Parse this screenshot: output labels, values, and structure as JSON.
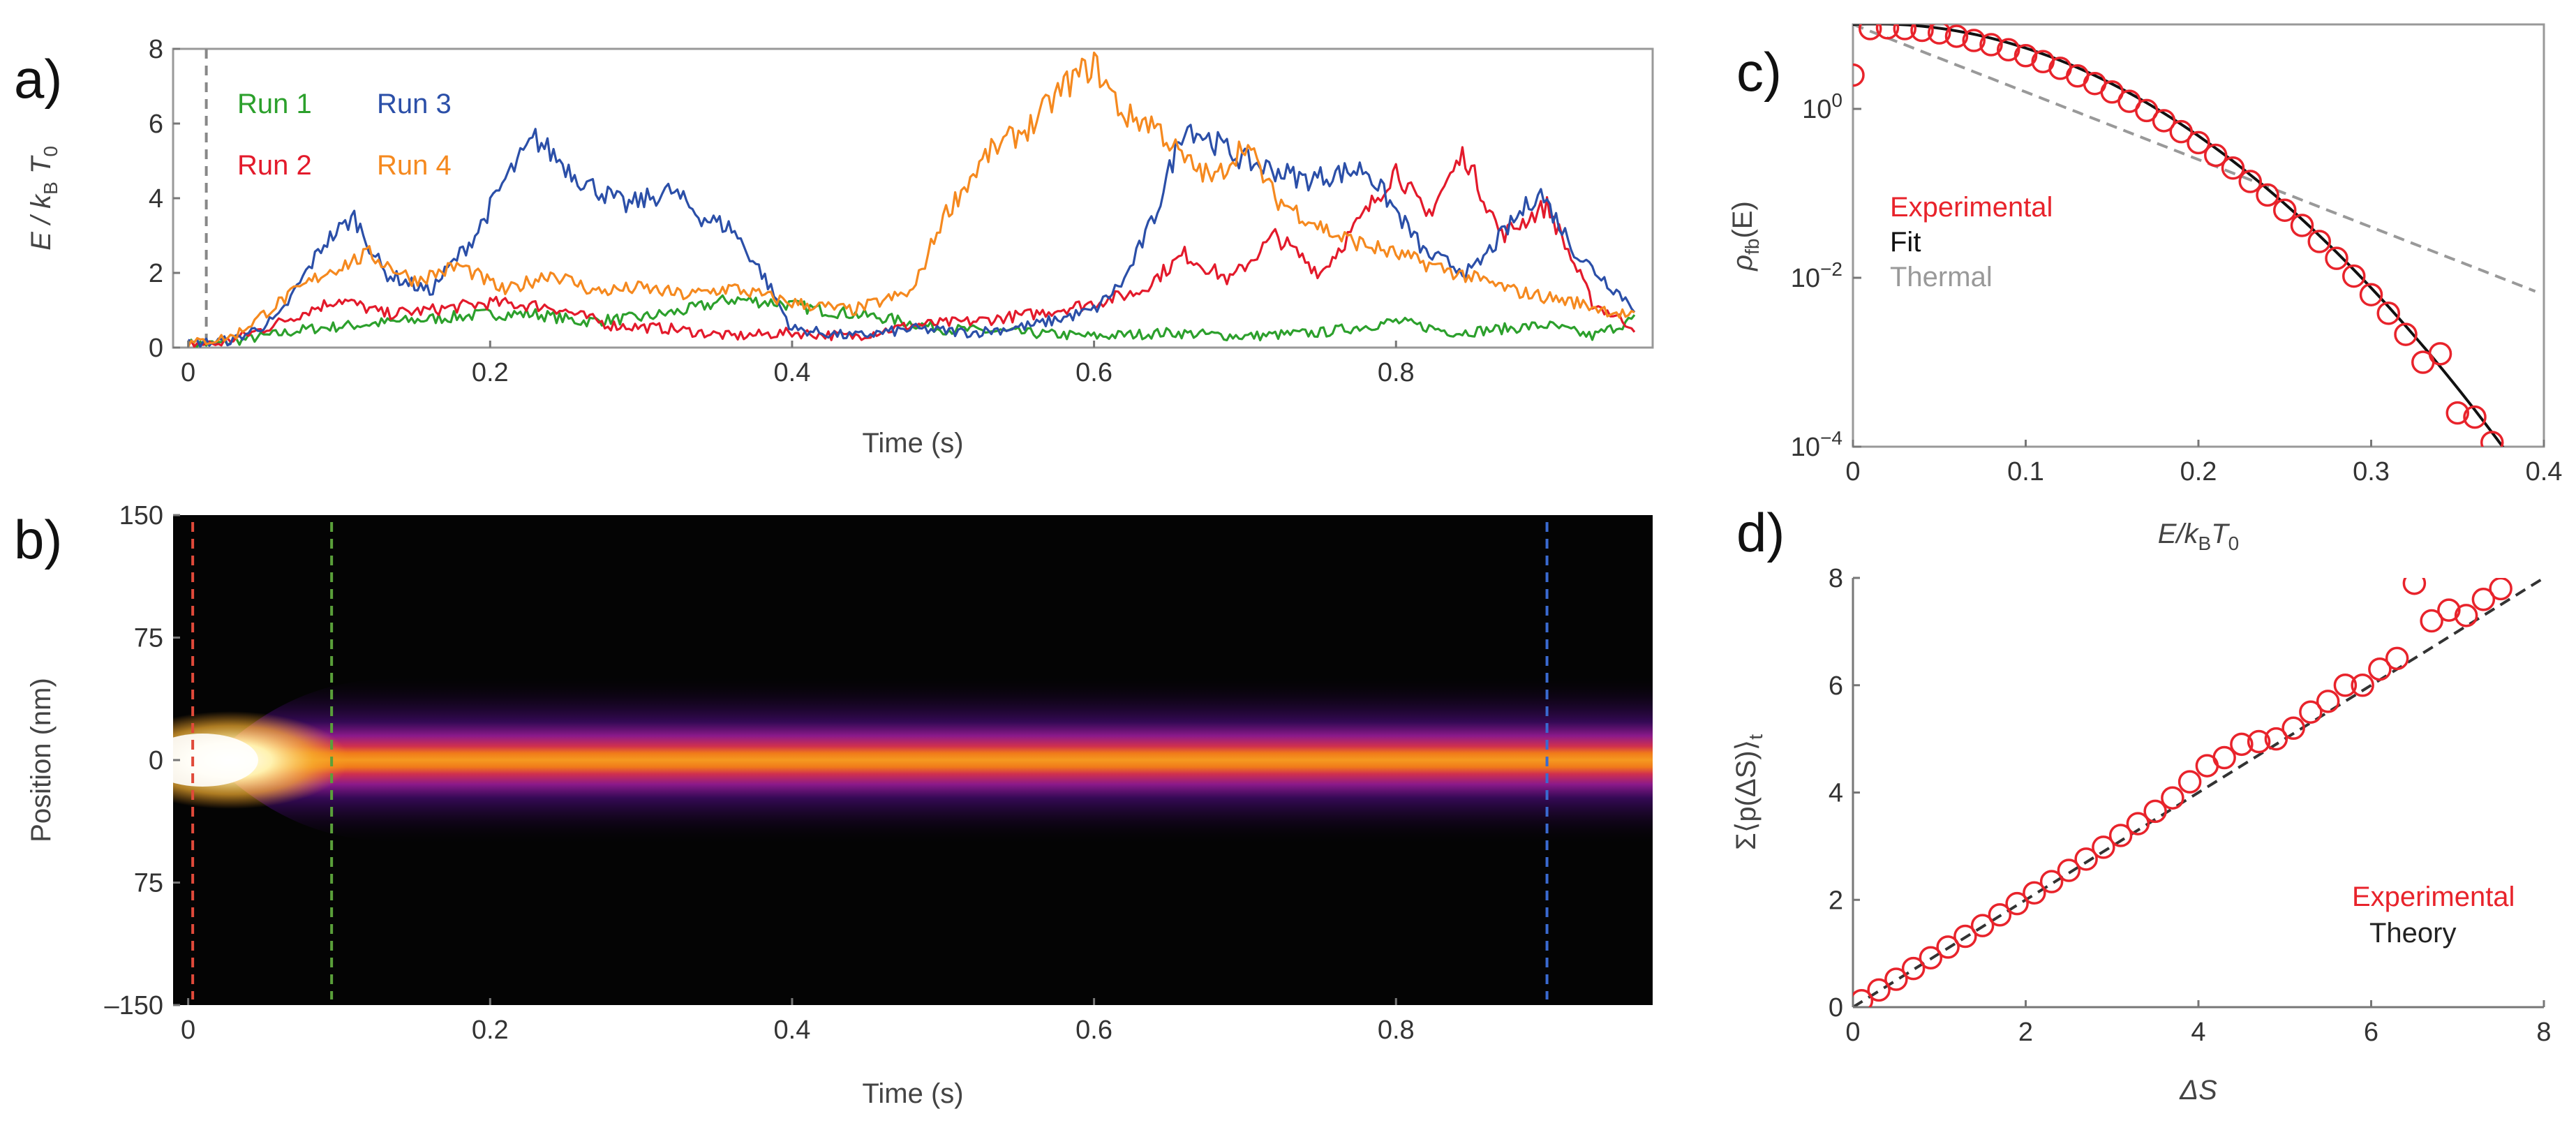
{
  "chart_data": [
    {
      "panel_label": "a)",
      "type": "line",
      "xlabel": "Time (s)",
      "ylabel": "E / k_B T_0",
      "ylabel_parts": {
        "e": "E",
        "slash": " / k",
        "sub": "B",
        "t": " T",
        "t_sub": "0"
      },
      "xlim": [
        -0.01,
        0.97
      ],
      "ylim": [
        0,
        8
      ],
      "xticks": [
        "0",
        "0.2",
        "0.4",
        "0.6",
        "0.8"
      ],
      "yticks": [
        "0",
        "2",
        "4",
        "6",
        "8"
      ],
      "grid": false,
      "legend_position": "top-left",
      "vline_x": 0.012,
      "series": [
        {
          "name": "Run 1",
          "color": "#2ca02c",
          "x": [
            0,
            0.02,
            0.05,
            0.08,
            0.11,
            0.14,
            0.17,
            0.2,
            0.23,
            0.26,
            0.3,
            0.33,
            0.36,
            0.39,
            0.42,
            0.46,
            0.5,
            0.55,
            0.6,
            0.65,
            0.7,
            0.75,
            0.8,
            0.84,
            0.87,
            0.9,
            0.93,
            0.96
          ],
          "y": [
            0.1,
            0.1,
            0.3,
            0.5,
            0.6,
            0.7,
            0.8,
            0.9,
            0.9,
            0.7,
            0.8,
            1.0,
            1.3,
            1.2,
            1.0,
            0.8,
            0.5,
            0.4,
            0.3,
            0.4,
            0.3,
            0.4,
            0.7,
            0.4,
            0.5,
            0.6,
            0.3,
            0.8
          ]
        },
        {
          "name": "Run 2",
          "color": "#e31a2b",
          "x": [
            0,
            0.02,
            0.05,
            0.08,
            0.1,
            0.13,
            0.16,
            0.2,
            0.24,
            0.28,
            0.32,
            0.36,
            0.4,
            0.44,
            0.48,
            0.52,
            0.56,
            0.6,
            0.63,
            0.66,
            0.69,
            0.72,
            0.75,
            0.78,
            0.8,
            0.82,
            0.845,
            0.87,
            0.9,
            0.93,
            0.96
          ],
          "y": [
            0.1,
            0.1,
            0.5,
            1.0,
            1.3,
            0.9,
            1.0,
            1.2,
            1.1,
            0.6,
            0.5,
            0.3,
            0.4,
            0.3,
            0.6,
            0.7,
            0.9,
            1.2,
            1.5,
            2.5,
            1.8,
            3.0,
            2.0,
            3.6,
            4.8,
            3.5,
            5.2,
            3.0,
            3.8,
            1.2,
            0.5
          ]
        },
        {
          "name": "Run 3",
          "color": "#2b4fa8",
          "x": [
            0,
            0.03,
            0.06,
            0.09,
            0.11,
            0.13,
            0.16,
            0.19,
            0.21,
            0.23,
            0.26,
            0.29,
            0.32,
            0.34,
            0.36,
            0.38,
            0.4,
            0.44,
            0.48,
            0.52,
            0.56,
            0.6,
            0.62,
            0.64,
            0.66,
            0.7,
            0.74,
            0.78,
            0.82,
            0.85,
            0.87,
            0.895,
            0.92,
            0.96
          ],
          "y": [
            0.1,
            0.2,
            0.8,
            2.8,
            3.5,
            2.0,
            1.5,
            3.0,
            4.5,
            5.6,
            4.5,
            3.8,
            4.2,
            3.5,
            3.2,
            2.0,
            0.5,
            0.3,
            0.5,
            0.4,
            0.6,
            1.0,
            1.8,
            3.5,
            6.0,
            5.0,
            4.5,
            4.8,
            2.5,
            2.0,
            3.0,
            4.2,
            2.5,
            1.0
          ]
        },
        {
          "name": "Run 4",
          "color": "#f5891f",
          "x": [
            0,
            0.03,
            0.06,
            0.09,
            0.12,
            0.15,
            0.18,
            0.21,
            0.24,
            0.27,
            0.3,
            0.33,
            0.36,
            0.4,
            0.44,
            0.48,
            0.5,
            0.53,
            0.56,
            0.58,
            0.6,
            0.62,
            0.64,
            0.66,
            0.68,
            0.7,
            0.72,
            0.76,
            0.8,
            0.84,
            0.88,
            0.92,
            0.96
          ],
          "y": [
            0.1,
            0.3,
            1.2,
            2.0,
            2.5,
            1.8,
            2.2,
            1.5,
            2.0,
            1.5,
            1.6,
            1.4,
            1.6,
            1.2,
            1.0,
            1.5,
            3.5,
            5.2,
            6.0,
            7.0,
            7.6,
            6.2,
            6.0,
            5.0,
            4.5,
            5.5,
            4.0,
            3.0,
            2.5,
            2.0,
            1.5,
            1.2,
            0.8
          ]
        }
      ]
    },
    {
      "panel_label": "b)",
      "type": "heatmap",
      "xlabel": "Time (s)",
      "ylabel": "Position (nm)",
      "xlim": [
        -0.01,
        0.97
      ],
      "ylim": [
        -150,
        150
      ],
      "xticks": [
        "0",
        "0.2",
        "0.4",
        "0.6",
        "0.8"
      ],
      "yticks": [
        "150",
        "75",
        "0",
        "75",
        "–150"
      ],
      "markers": [
        {
          "x": 0.003,
          "color": "#e04a3a"
        },
        {
          "x": 0.095,
          "color": "#5aa03a"
        },
        {
          "x": 0.9,
          "color": "#3a6ad0"
        }
      ]
    },
    {
      "panel_label": "c)",
      "type": "scatter",
      "xlabel": "E/k_B T_0",
      "xlabel_parts": {
        "e": "E",
        "slash": "/k",
        "sub": "B",
        "t": "T",
        "t_sub": "0"
      },
      "ylabel": "ρ_fb(E)",
      "ylabel_parts": {
        "rho": "ρ",
        "sub": "fb",
        "rest": "(E)"
      },
      "xlim": [
        0,
        0.4
      ],
      "ylim_log10": [
        -4,
        1
      ],
      "yscale": "log",
      "xticks": [
        "0",
        "0.1",
        "0.2",
        "0.3",
        "0.4"
      ],
      "yticks": [
        {
          "base": "10",
          "exp": "−4"
        },
        {
          "base": "10",
          "exp": "−2"
        },
        {
          "base": "10",
          "exp": "0"
        }
      ],
      "legend_position": "middle-left",
      "legend": [
        {
          "label": "Experimental",
          "color": "#e8232b"
        },
        {
          "label": "Fit",
          "color": "#111111"
        },
        {
          "label": "Thermal",
          "color": "#999999"
        }
      ],
      "experimental": {
        "x": [
          0.0,
          0.01,
          0.02,
          0.03,
          0.04,
          0.05,
          0.06,
          0.07,
          0.08,
          0.09,
          0.1,
          0.11,
          0.12,
          0.13,
          0.14,
          0.15,
          0.16,
          0.17,
          0.18,
          0.19,
          0.2,
          0.21,
          0.22,
          0.23,
          0.24,
          0.25,
          0.26,
          0.27,
          0.28,
          0.29,
          0.3,
          0.31,
          0.32,
          0.33,
          0.34,
          0.35,
          0.36,
          0.37
        ],
        "log10_y": [
          0.4,
          0.95,
          0.96,
          0.95,
          0.93,
          0.9,
          0.86,
          0.81,
          0.76,
          0.7,
          0.63,
          0.56,
          0.48,
          0.39,
          0.3,
          0.2,
          0.09,
          -0.02,
          -0.14,
          -0.27,
          -0.4,
          -0.55,
          -0.7,
          -0.86,
          -1.02,
          -1.2,
          -1.38,
          -1.57,
          -1.77,
          -1.98,
          -2.2,
          -2.42,
          -2.67,
          -3.0,
          -2.9,
          -3.6,
          -3.65,
          -3.95
        ]
      },
      "fit_log10": {
        "intercept": 1.0,
        "c1": 1.0,
        "c2": -38.0
      },
      "thermal_log10": {
        "intercept": 1.0,
        "slope": -8.0
      }
    },
    {
      "panel_label": "d)",
      "type": "scatter",
      "xlabel": "ΔS",
      "ylabel": "Σ⟨p(ΔS)⟩_t",
      "ylabel_parts": {
        "main": "Σ⟨p(ΔS)⟩",
        "sub": "t"
      },
      "xlim": [
        0,
        8
      ],
      "ylim": [
        0,
        8
      ],
      "xticks": [
        "0",
        "2",
        "4",
        "6",
        "8"
      ],
      "yticks": [
        "0",
        "2",
        "4",
        "6",
        "8"
      ],
      "legend_position": "bottom-right",
      "legend": [
        {
          "label": "Experimental",
          "color": "#e8232b"
        },
        {
          "label": "Theory",
          "color": "#222222"
        }
      ],
      "experimental": {
        "x": [
          0.1,
          0.3,
          0.5,
          0.7,
          0.9,
          1.1,
          1.3,
          1.5,
          1.7,
          1.9,
          2.1,
          2.3,
          2.5,
          2.7,
          2.9,
          3.1,
          3.3,
          3.5,
          3.7,
          3.9,
          4.1,
          4.3,
          4.5,
          4.7,
          4.9,
          5.1,
          5.3,
          5.5,
          5.7,
          5.9,
          6.1,
          6.3,
          6.5,
          6.7,
          6.9,
          7.1,
          7.3,
          7.5
        ],
        "y": [
          0.12,
          0.32,
          0.52,
          0.72,
          0.92,
          1.12,
          1.32,
          1.52,
          1.72,
          1.93,
          2.13,
          2.34,
          2.55,
          2.76,
          2.98,
          3.2,
          3.42,
          3.65,
          3.9,
          4.2,
          4.5,
          4.65,
          4.9,
          4.95,
          5.0,
          5.2,
          5.5,
          5.7,
          6.0,
          6.0,
          6.3,
          6.5,
          7.9,
          7.2,
          7.4,
          7.3,
          7.6,
          7.8
        ]
      },
      "theory": {
        "x": [
          0,
          8
        ],
        "y": [
          0,
          8
        ]
      }
    }
  ]
}
